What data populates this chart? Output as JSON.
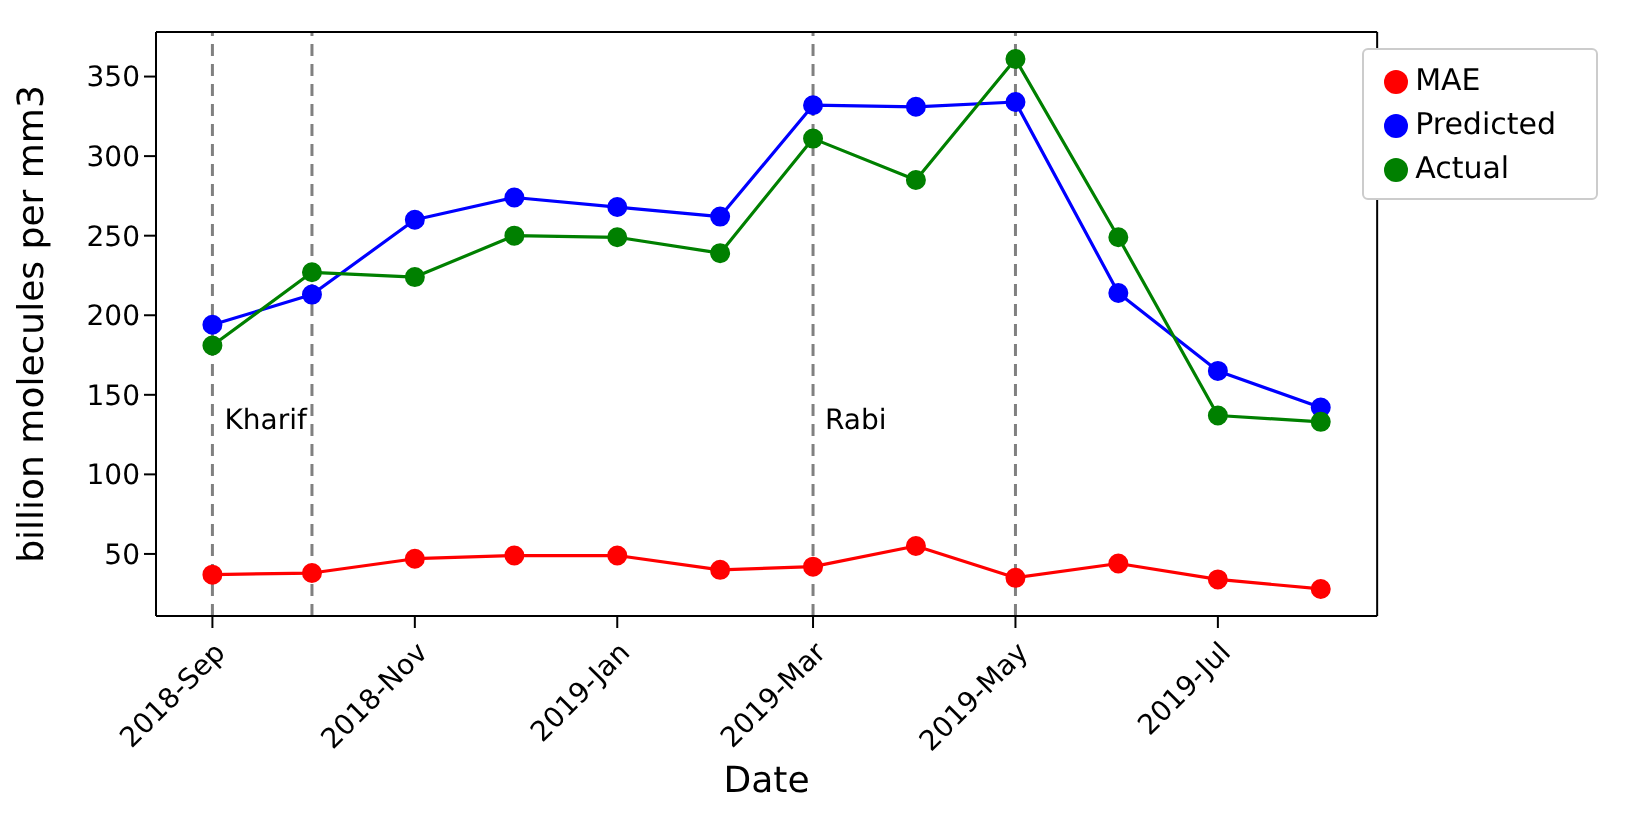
{
  "chart_data": {
    "type": "line",
    "xlabel": "Date",
    "ylabel": "billion molecules per mm3",
    "x": [
      "2018-09-01",
      "2018-10-01",
      "2018-11-01",
      "2018-12-01",
      "2019-01-01",
      "2019-02-01",
      "2019-03-01",
      "2019-04-01",
      "2019-05-01",
      "2019-06-01",
      "2019-07-01",
      "2019-08-01"
    ],
    "series": [
      {
        "name": "MAE",
        "color": "#ff0000",
        "values": [
          37,
          38,
          47,
          49,
          49,
          40,
          42,
          55,
          35,
          44,
          34,
          28
        ]
      },
      {
        "name": "Predicted",
        "color": "#0000ff",
        "values": [
          194,
          213,
          260,
          274,
          268,
          262,
          332,
          331,
          334,
          214,
          165,
          142
        ]
      },
      {
        "name": "Actual",
        "color": "#008000",
        "values": [
          181,
          227,
          224,
          250,
          249,
          239,
          311,
          285,
          361,
          249,
          137,
          133
        ]
      }
    ],
    "xlim": [
      "2018-08-15",
      "2019-08-18"
    ],
    "xticks": [
      {
        "value": "2018-09-01",
        "label": "2018-Sep"
      },
      {
        "value": "2018-11-01",
        "label": "2018-Nov"
      },
      {
        "value": "2019-01-01",
        "label": "2019-Jan"
      },
      {
        "value": "2019-03-01",
        "label": "2019-Mar"
      },
      {
        "value": "2019-05-01",
        "label": "2019-May"
      },
      {
        "value": "2019-07-01",
        "label": "2019-Jul"
      }
    ],
    "ylim": [
      11,
      378
    ],
    "yticks": [
      50,
      100,
      150,
      200,
      250,
      300,
      350
    ],
    "ref_lines": [
      {
        "axis": "x",
        "value": "2018-09-01",
        "color": "#808080",
        "line_style": "dashed",
        "label": "Kharif"
      },
      {
        "axis": "x",
        "value": "2018-10-01",
        "color": "#808080",
        "line_style": "dashed"
      },
      {
        "axis": "x",
        "value": "2019-03-01",
        "color": "#808080",
        "line_style": "dashed",
        "label": "Rabi"
      },
      {
        "axis": "x",
        "value": "2019-05-01",
        "color": "#808080",
        "line_style": "dashed"
      }
    ],
    "legend": "top right",
    "marker": "circle",
    "line_style": "solid"
  }
}
